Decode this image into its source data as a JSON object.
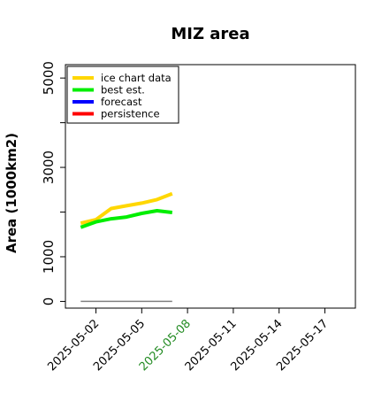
{
  "chart_data": {
    "type": "line",
    "title": "MIZ area",
    "ylabel": "Area (1000km2)",
    "xlabel": "",
    "ylim": [
      -150,
      5300
    ],
    "xlim": [
      "2025-04-30",
      "2025-05-19"
    ],
    "yticks": [
      0,
      1000,
      2000,
      3000,
      4000,
      5000
    ],
    "ytick_labels": [
      "0",
      "1000",
      "",
      "3000",
      "",
      "5000"
    ],
    "xticks": [
      "2025-05-02",
      "2025-05-05",
      "2025-05-08",
      "2025-05-11",
      "2025-05-14",
      "2025-05-17"
    ],
    "xtick_labels": [
      "2025-05-02",
      "2025-05-05",
      "2025-05-08",
      "2025-05-11",
      "2025-05-14",
      "2025-05-17"
    ],
    "highlight_tick": "2025-05-08",
    "highlight_color": "#228b22",
    "grid": false,
    "legend_position": "top-left",
    "series": [
      {
        "name": "ice chart data",
        "color": "#ffd700",
        "x": [
          "2025-05-01",
          "2025-05-02",
          "2025-05-03",
          "2025-05-04",
          "2025-05-05",
          "2025-05-06",
          "2025-05-07"
        ],
        "values": [
          1750,
          1830,
          2080,
          2140,
          2200,
          2280,
          2410
        ]
      },
      {
        "name": "best est.",
        "color": "#00ee00",
        "x": [
          "2025-05-01",
          "2025-05-02",
          "2025-05-03",
          "2025-05-04",
          "2025-05-05",
          "2025-05-06",
          "2025-05-07"
        ],
        "values": [
          1660,
          1780,
          1850,
          1890,
          1970,
          2030,
          1990
        ]
      },
      {
        "name": "forecast",
        "color": "#0000ff",
        "x": [],
        "values": []
      },
      {
        "name": "persistence",
        "color": "#ff0000",
        "x": [],
        "values": []
      },
      {
        "name": "",
        "color": "#808080",
        "x": [
          "2025-05-01",
          "2025-05-07"
        ],
        "values": [
          0,
          0
        ]
      }
    ]
  }
}
